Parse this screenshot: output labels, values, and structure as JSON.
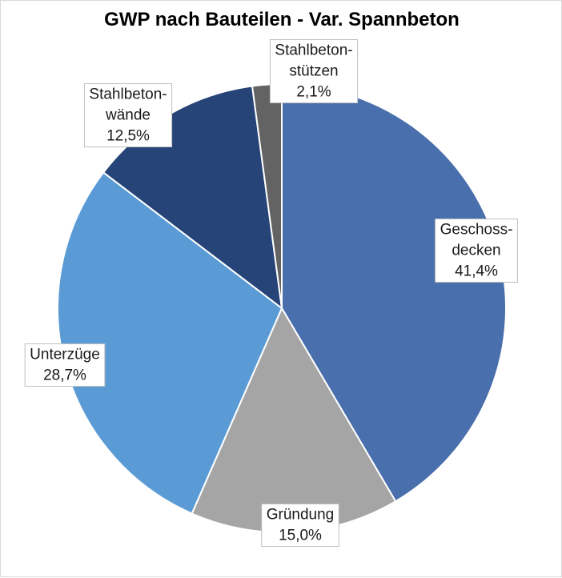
{
  "chart_data": {
    "type": "pie",
    "title": "GWP nach Bauteilen - Var. Spannbeton",
    "slices": [
      {
        "label_lines": [
          "Geschoss-",
          "decken"
        ],
        "value_label": "41,4%",
        "value": 41.4,
        "color": "#4a6fad"
      },
      {
        "label_lines": [
          "Gründung"
        ],
        "value_label": "15,0%",
        "value": 15.0,
        "color": "#a5a5a5"
      },
      {
        "label_lines": [
          "Unterzüge"
        ],
        "value_label": "28,7%",
        "value": 28.7,
        "color": "#5b9bd5"
      },
      {
        "label_lines": [
          "Stahlbeton-",
          "wände"
        ],
        "value_label": "12,5%",
        "value": 12.5,
        "color": "#264478"
      },
      {
        "label_lines": [
          "Stahlbeton-",
          "stützen"
        ],
        "value_label": "2,1%",
        "value": 2.1,
        "color": "#636363"
      }
    ],
    "start_angle": "12 o'clock",
    "direction": "clockwise",
    "legend": "none"
  }
}
